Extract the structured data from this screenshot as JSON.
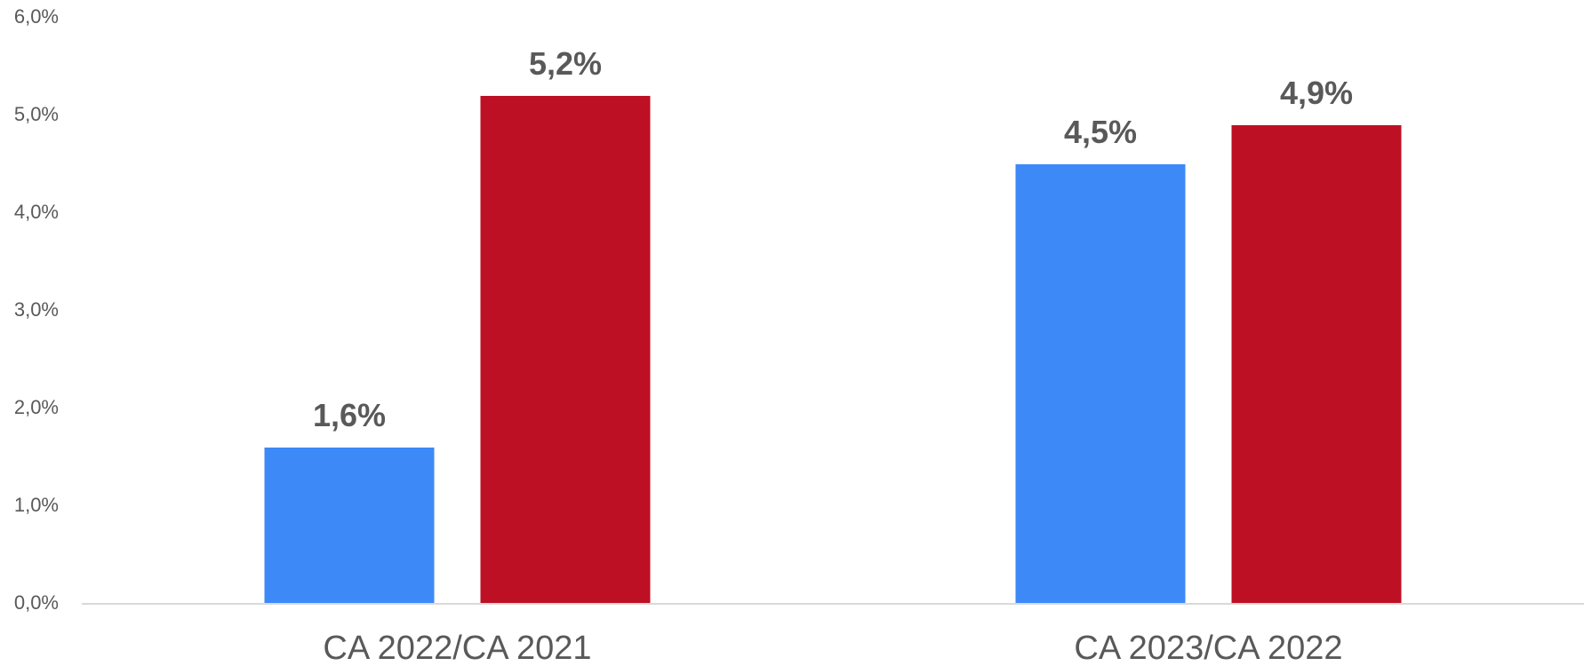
{
  "chart_data": {
    "type": "bar",
    "categories": [
      "CA 2022/CA 2021",
      "CA 2023/CA 2022"
    ],
    "series": [
      {
        "values": [
          1.6,
          4.5
        ],
        "labels": [
          "1,6%",
          "4,5%"
        ],
        "color": "#3d89f7"
      },
      {
        "values": [
          5.2,
          4.9
        ],
        "labels": [
          "5,2%",
          "4,9%"
        ],
        "color": "#be1024"
      }
    ],
    "ylim": [
      0,
      6
    ],
    "yticks": [
      "0,0%",
      "1,0%",
      "2,0%",
      "3,0%",
      "4,0%",
      "5,0%",
      "6,0%"
    ],
    "grid": false,
    "axis_color": "#d9d9d9",
    "title": "",
    "xlabel": "",
    "ylabel": ""
  }
}
